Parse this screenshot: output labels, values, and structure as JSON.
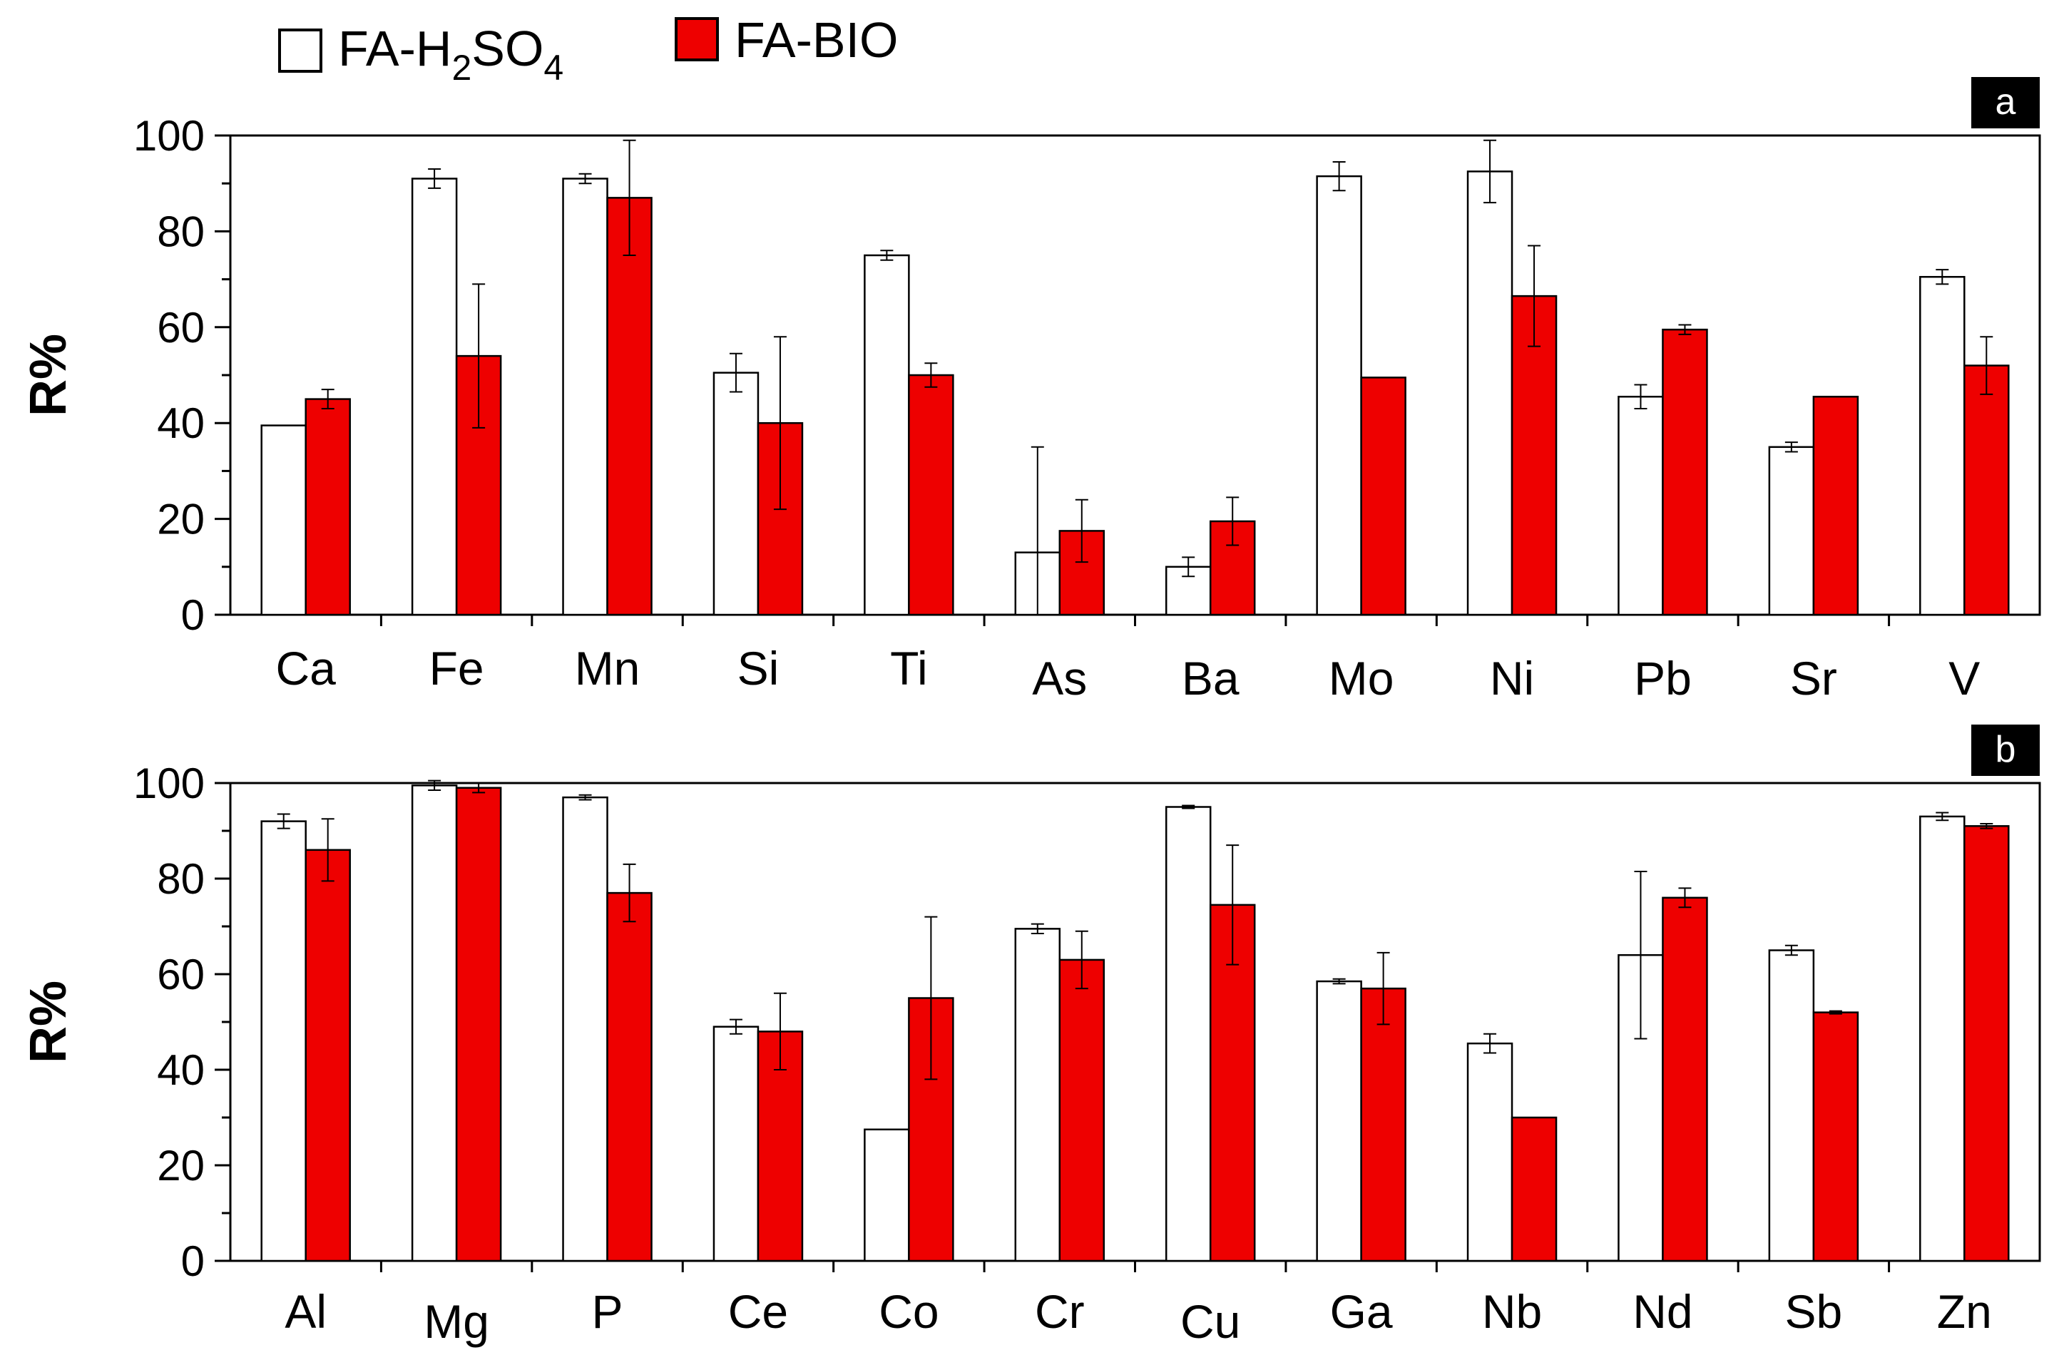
{
  "legend": {
    "series1_prefix": "FA-H",
    "series1_sub1": "2",
    "series1_mid": "SO",
    "series1_sub2": "4",
    "series2": "FA-BIO"
  },
  "colors": {
    "series1_fill": "#ffffff",
    "series2_fill": "#ee0000",
    "stroke": "#000000"
  },
  "chart_data": [
    {
      "type": "bar",
      "panel_label": "a",
      "ylabel": "R%",
      "ylim": [
        0,
        100
      ],
      "yticks": [
        "0",
        "20",
        "40",
        "60",
        "80",
        "100"
      ],
      "categories": [
        "Ca",
        "Fe",
        "Mn",
        "Si",
        "Ti",
        "As",
        "Ba",
        "Mo",
        "Ni",
        "Pb",
        "Sr",
        "V"
      ],
      "series": [
        {
          "name": "FA-H2SO4",
          "values": [
            39.5,
            91,
            91,
            50.5,
            75,
            13,
            10,
            91.5,
            92.5,
            45.5,
            35,
            70.5
          ],
          "errors": [
            0,
            2,
            1,
            4,
            1,
            22,
            2,
            3,
            6.5,
            2.5,
            1,
            1.5
          ]
        },
        {
          "name": "FA-BIO",
          "values": [
            45,
            54,
            87,
            40,
            50,
            17.5,
            19.5,
            49.5,
            66.5,
            59.5,
            45.5,
            52
          ],
          "errors": [
            2,
            15,
            12,
            18,
            2.5,
            6.5,
            5,
            0,
            10.5,
            1,
            0,
            6
          ]
        }
      ]
    },
    {
      "type": "bar",
      "panel_label": "b",
      "ylabel": "R%",
      "ylim": [
        0,
        100
      ],
      "yticks": [
        "0",
        "20",
        "40",
        "60",
        "80",
        "100"
      ],
      "categories": [
        "Al",
        "Mg",
        "P",
        "Ce",
        "Co",
        "Cr",
        "Cu",
        "Ga",
        "Nb",
        "Nd",
        "Sb",
        "Zn"
      ],
      "series": [
        {
          "name": "FA-H2SO4",
          "values": [
            92,
            99.5,
            97,
            49,
            27.5,
            69.5,
            95,
            58.5,
            45.5,
            64,
            65,
            93
          ],
          "errors": [
            1.5,
            1,
            0.5,
            1.5,
            0,
            1,
            0.3,
            0.5,
            2,
            17.5,
            1,
            0.8
          ]
        },
        {
          "name": "FA-BIO",
          "values": [
            86,
            99,
            77,
            48,
            55,
            63,
            74.5,
            57,
            30,
            76,
            52,
            91
          ],
          "errors": [
            6.5,
            1,
            6,
            8,
            17,
            6,
            12.5,
            7.5,
            0,
            2,
            0.3,
            0.5
          ]
        }
      ]
    }
  ]
}
